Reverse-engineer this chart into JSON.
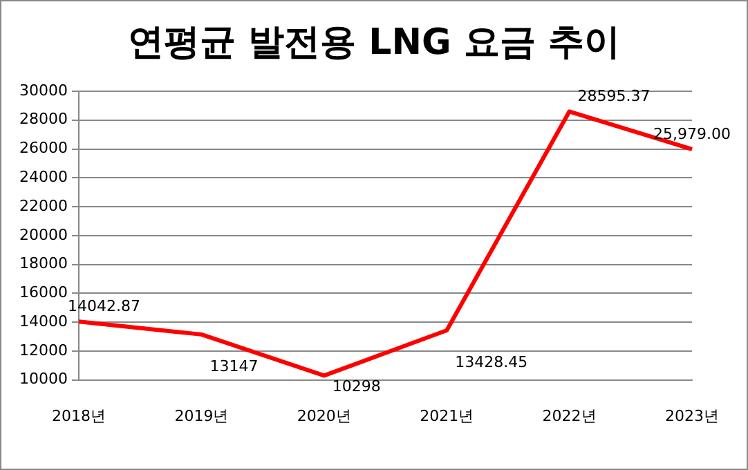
{
  "chart_data": {
    "type": "line",
    "title": "연평균 발전용 LNG 요금 추이",
    "categories": [
      "2018년",
      "2019년",
      "2020년",
      "2021년",
      "2022년",
      "2023년"
    ],
    "series": [
      {
        "color": "#ff0000",
        "values": [
          14042.87,
          13147,
          10298,
          13428.45,
          28595.37,
          25979
        ],
        "value_labels": [
          "14042.87",
          "13147",
          "10298",
          "13428.45",
          "28595.37",
          "25,979.00"
        ]
      }
    ],
    "ylim": [
      10000,
      30000
    ],
    "yticks": [
      10000,
      12000,
      14000,
      16000,
      18000,
      20000,
      22000,
      24000,
      26000,
      28000,
      30000
    ],
    "grid": "y",
    "legend": false,
    "marker": "none",
    "line_style": "solid"
  }
}
